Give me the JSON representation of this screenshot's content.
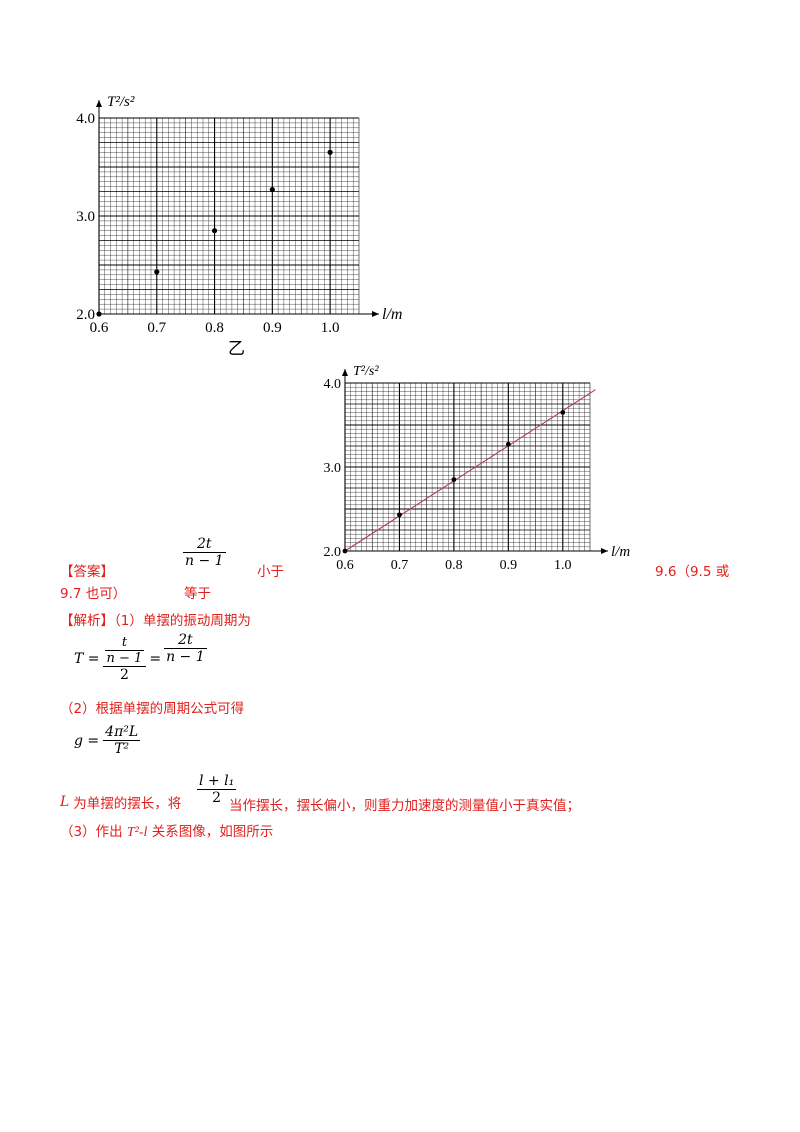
{
  "chart_data": [
    {
      "type": "scatter",
      "y_unit_label": "T²/s²",
      "x_unit_label": "l/m",
      "caption": "乙",
      "xlim": [
        0.6,
        1.05
      ],
      "ylim": [
        2.0,
        4.0
      ],
      "x_ticks": [
        "0.6",
        "0.7",
        "0.8",
        "0.9",
        "1.0"
      ],
      "y_ticks": [
        "2.0",
        "3.0",
        "4.0"
      ],
      "grid": true,
      "points": [
        {
          "x": 0.6,
          "y": 2.0
        },
        {
          "x": 0.7,
          "y": 2.43
        },
        {
          "x": 0.8,
          "y": 2.85
        },
        {
          "x": 0.9,
          "y": 3.27
        },
        {
          "x": 1.0,
          "y": 3.65
        }
      ]
    },
    {
      "type": "scatter",
      "y_unit_label": "T²/s²",
      "x_unit_label": "l/m",
      "xlim": [
        0.6,
        1.05
      ],
      "ylim": [
        2.0,
        4.0
      ],
      "x_ticks": [
        "0.6",
        "0.7",
        "0.8",
        "0.9",
        "1.0"
      ],
      "y_ticks": [
        "2.0",
        "3.0",
        "4.0"
      ],
      "grid": true,
      "points": [
        {
          "x": 0.6,
          "y": 2.0
        },
        {
          "x": 0.7,
          "y": 2.43
        },
        {
          "x": 0.8,
          "y": 2.85
        },
        {
          "x": 0.9,
          "y": 3.27
        },
        {
          "x": 1.0,
          "y": 3.65
        }
      ],
      "fit_line": {
        "x": [
          0.6,
          1.06
        ],
        "y": [
          2.0,
          3.92
        ],
        "color": "#b03a5a"
      }
    }
  ],
  "answer": {
    "label": "【答案】",
    "frac_num": "2t",
    "frac_den": "n − 1",
    "less": "小于",
    "g_value_a": "9.6（9.5 或",
    "g_value_b": "9.7 也可）",
    "equal": "等于"
  },
  "analysis": {
    "label": "【解析】",
    "step1": "（1）单摆的振动周期为",
    "step2": "（2）根据单摆的周期公式可得",
    "step3": "（3）作出 ",
    "step3_tail": " 关系图像，如图所示",
    "L_text": "为单摆的摆长，将",
    "L_tail": "当作摆长，摆长偏小，则重力加速度的测量值小于真实值；"
  },
  "formulas": {
    "T_lhs": "T =",
    "T_inner_num": "t",
    "T_inner_den": "n − 1",
    "T_outer_den": "2",
    "eq": "=",
    "T_rhs_num": "2t",
    "T_rhs_den": "n − 1",
    "g_lhs": "g =",
    "g_num": "4π²L",
    "g_den": "T²",
    "L": "L",
    "half_num": "l + l₁",
    "half_den": "2",
    "T2l": "T²-l"
  },
  "colors": {
    "accent_red": "#e0201c",
    "fit_line": "#b03a5a"
  }
}
